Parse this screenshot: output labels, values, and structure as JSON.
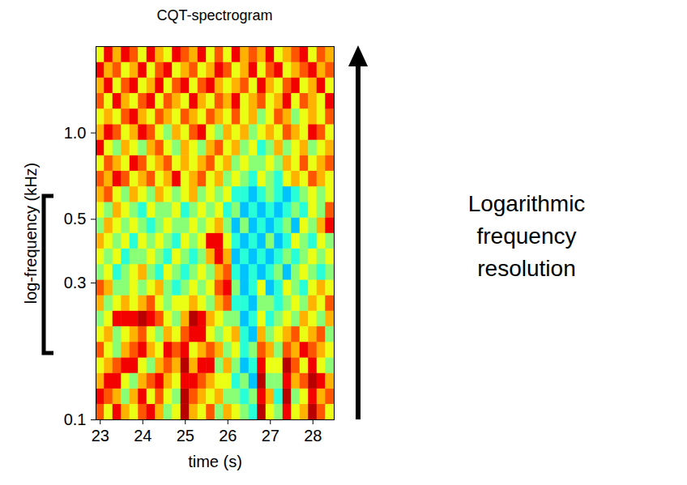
{
  "chart_data": {
    "type": "heatmap",
    "title": "CQT-spectrogram",
    "x_label": "time (s)",
    "y_label": "log-frequency (kHz)",
    "annotations": [
      "Logarithmic frequency resolution"
    ],
    "log": "y",
    "xlim": [
      22.9,
      28.5
    ],
    "xticks": [
      23,
      24,
      25,
      26,
      27,
      28
    ],
    "ylim": [
      0.1,
      2.0
    ],
    "yticks": [
      0.1,
      0.3,
      0.5,
      {
        "value": 1,
        "label": "1.0"
      }
    ],
    "x_edges": [
      22.9,
      23.1,
      23.3,
      23.5,
      23.7,
      23.9,
      24.1,
      24.3,
      24.5,
      24.7,
      24.9,
      25.1,
      25.3,
      25.5,
      25.7,
      25.9,
      26.1,
      26.3,
      26.5,
      26.7,
      26.9,
      27.1,
      27.3,
      27.5,
      27.7,
      27.9,
      28.1,
      28.3,
      28.5
    ],
    "y_edges": [
      0.1,
      0.1133,
      0.1283,
      0.1454,
      0.1647,
      0.1866,
      0.2114,
      0.2395,
      0.2714,
      0.3074,
      0.3483,
      0.3946,
      0.447,
      0.5064,
      0.5737,
      0.65,
      0.7363,
      0.8342,
      0.9451,
      1.0707,
      1.213,
      1.374,
      1.557,
      1.764,
      2.0
    ],
    "zlim": [
      0,
      1
    ],
    "cells": [
      [
        0.8,
        0.6,
        0.9,
        0.7,
        0.6,
        0.8,
        0.9,
        0.7,
        0.5,
        0.6,
        0.95,
        0.7,
        0.6,
        0.8,
        0.5,
        0.7,
        0.6,
        0.5,
        0.4,
        0.95,
        0.6,
        0.5,
        0.9,
        0.6,
        0.7,
        0.95,
        0.8,
        0.6
      ],
      [
        0.9,
        0.8,
        0.7,
        0.5,
        0.7,
        0.9,
        0.6,
        0.8,
        0.6,
        0.5,
        0.95,
        0.8,
        0.7,
        0.6,
        0.7,
        0.5,
        0.5,
        0.4,
        0.5,
        0.9,
        0.7,
        0.4,
        0.95,
        0.5,
        0.6,
        0.9,
        0.7,
        0.8
      ],
      [
        0.7,
        0.9,
        0.9,
        0.6,
        0.5,
        0.7,
        0.8,
        0.9,
        0.7,
        0.6,
        0.9,
        0.9,
        0.8,
        0.7,
        0.6,
        0.6,
        0.4,
        0.5,
        0.3,
        0.95,
        0.5,
        0.5,
        0.9,
        0.7,
        0.8,
        0.95,
        0.9,
        0.7
      ],
      [
        0.6,
        0.7,
        0.8,
        0.9,
        0.9,
        0.6,
        0.5,
        0.7,
        0.8,
        0.7,
        0.95,
        0.7,
        0.9,
        0.9,
        0.5,
        0.7,
        0.5,
        0.3,
        0.4,
        0.9,
        0.6,
        0.6,
        0.95,
        0.8,
        0.6,
        0.9,
        0.6,
        0.5
      ],
      [
        0.8,
        0.6,
        0.5,
        0.7,
        0.8,
        0.9,
        0.7,
        0.6,
        0.9,
        0.8,
        0.9,
        0.6,
        0.7,
        0.8,
        0.7,
        0.5,
        0.6,
        0.4,
        0.5,
        0.8,
        0.7,
        0.5,
        0.8,
        0.7,
        0.9,
        0.8,
        0.7,
        0.6
      ],
      [
        0.6,
        0.7,
        0.5,
        0.6,
        0.7,
        0.8,
        0.6,
        0.5,
        0.7,
        0.6,
        0.8,
        0.9,
        0.9,
        0.6,
        0.5,
        0.6,
        0.7,
        0.4,
        0.3,
        0.7,
        0.5,
        0.6,
        0.7,
        0.8,
        0.6,
        0.7,
        0.8,
        0.5
      ],
      [
        0.5,
        0.6,
        0.9,
        0.9,
        0.9,
        0.95,
        0.9,
        0.8,
        0.6,
        0.5,
        0.7,
        0.95,
        0.9,
        0.7,
        0.6,
        0.5,
        0.5,
        0.3,
        0.4,
        0.6,
        0.4,
        0.5,
        0.6,
        0.5,
        0.7,
        0.6,
        0.5,
        0.7
      ],
      [
        0.7,
        0.5,
        0.6,
        0.7,
        0.6,
        0.7,
        0.8,
        0.6,
        0.5,
        0.6,
        0.6,
        0.7,
        0.6,
        0.5,
        0.7,
        0.8,
        0.4,
        0.4,
        0.3,
        0.5,
        0.5,
        0.4,
        0.5,
        0.6,
        0.5,
        0.7,
        0.6,
        0.8
      ],
      [
        0.8,
        0.7,
        0.5,
        0.5,
        0.6,
        0.5,
        0.6,
        0.7,
        0.5,
        0.4,
        0.5,
        0.6,
        0.5,
        0.6,
        0.8,
        0.9,
        0.5,
        0.3,
        0.4,
        0.6,
        0.3,
        0.4,
        0.6,
        0.5,
        0.4,
        0.6,
        0.7,
        0.6
      ],
      [
        0.5,
        0.6,
        0.4,
        0.5,
        0.6,
        0.7,
        0.5,
        0.4,
        0.6,
        0.5,
        0.4,
        0.5,
        0.6,
        0.5,
        0.7,
        0.8,
        0.4,
        0.3,
        0.4,
        0.3,
        0.4,
        0.5,
        0.3,
        0.5,
        0.6,
        0.5,
        0.4,
        0.5
      ],
      [
        0.6,
        0.5,
        0.6,
        0.4,
        0.5,
        0.5,
        0.6,
        0.5,
        0.4,
        0.6,
        0.5,
        0.4,
        0.5,
        0.7,
        0.9,
        0.7,
        0.3,
        0.4,
        0.3,
        0.4,
        0.3,
        0.4,
        0.5,
        0.4,
        0.5,
        0.6,
        0.5,
        0.6
      ],
      [
        0.7,
        0.6,
        0.5,
        0.6,
        0.4,
        0.6,
        0.5,
        0.6,
        0.5,
        0.4,
        0.6,
        0.5,
        0.6,
        0.9,
        0.9,
        0.6,
        0.4,
        0.3,
        0.4,
        0.3,
        0.5,
        0.3,
        0.4,
        0.6,
        0.5,
        0.4,
        0.6,
        0.5
      ],
      [
        0.5,
        0.7,
        0.6,
        0.5,
        0.6,
        0.5,
        0.4,
        0.5,
        0.6,
        0.5,
        0.5,
        0.6,
        0.5,
        0.6,
        0.7,
        0.5,
        0.3,
        0.5,
        0.3,
        0.4,
        0.3,
        0.4,
        0.5,
        0.3,
        0.6,
        0.5,
        0.7,
        0.9
      ],
      [
        0.6,
        0.5,
        0.7,
        0.6,
        0.5,
        0.4,
        0.6,
        0.5,
        0.5,
        0.6,
        0.4,
        0.5,
        0.6,
        0.5,
        0.6,
        0.4,
        0.5,
        0.3,
        0.4,
        0.3,
        0.4,
        0.3,
        0.4,
        0.5,
        0.4,
        0.6,
        0.5,
        0.8
      ],
      [
        0.7,
        0.8,
        0.6,
        0.5,
        0.7,
        0.6,
        0.5,
        0.7,
        0.6,
        0.5,
        0.6,
        0.7,
        0.5,
        0.6,
        0.5,
        0.6,
        0.4,
        0.4,
        0.3,
        0.4,
        0.5,
        0.4,
        0.3,
        0.4,
        0.5,
        0.6,
        0.5,
        0.6
      ],
      [
        0.8,
        0.7,
        0.9,
        0.8,
        0.6,
        0.7,
        0.8,
        0.6,
        0.7,
        0.9,
        0.6,
        0.7,
        0.8,
        0.6,
        0.7,
        0.5,
        0.6,
        0.5,
        0.4,
        0.6,
        0.5,
        0.4,
        0.6,
        0.7,
        0.6,
        0.8,
        0.7,
        0.6
      ],
      [
        0.6,
        0.8,
        0.7,
        0.6,
        0.9,
        0.8,
        0.6,
        0.7,
        0.8,
        0.6,
        0.7,
        0.6,
        0.7,
        0.8,
        0.6,
        0.7,
        0.5,
        0.6,
        0.5,
        0.5,
        0.6,
        0.5,
        0.7,
        0.6,
        0.8,
        0.6,
        0.7,
        0.8
      ],
      [
        0.9,
        0.6,
        0.5,
        0.7,
        0.6,
        0.5,
        0.7,
        0.8,
        0.6,
        0.5,
        0.7,
        0.6,
        0.5,
        0.7,
        0.8,
        0.6,
        0.7,
        0.5,
        0.6,
        0.4,
        0.5,
        0.7,
        0.5,
        0.6,
        0.7,
        0.5,
        0.6,
        0.7
      ],
      [
        0.7,
        0.9,
        0.8,
        0.6,
        0.7,
        0.9,
        0.8,
        0.6,
        0.5,
        0.7,
        0.6,
        0.8,
        0.9,
        0.6,
        0.5,
        0.7,
        0.6,
        0.7,
        0.5,
        0.6,
        0.7,
        0.6,
        0.8,
        0.7,
        0.6,
        0.9,
        0.8,
        0.6
      ],
      [
        0.6,
        0.7,
        0.6,
        0.8,
        0.9,
        0.7,
        0.6,
        0.8,
        0.7,
        0.6,
        0.8,
        0.7,
        0.6,
        0.8,
        0.7,
        0.6,
        0.8,
        0.6,
        0.7,
        0.5,
        0.6,
        0.8,
        0.7,
        0.5,
        0.6,
        0.7,
        0.6,
        0.8
      ],
      [
        0.8,
        0.6,
        0.9,
        0.7,
        0.6,
        0.8,
        0.9,
        0.6,
        0.8,
        0.7,
        0.6,
        0.9,
        0.7,
        0.6,
        0.8,
        0.7,
        0.9,
        0.6,
        0.7,
        0.8,
        0.6,
        0.7,
        0.9,
        0.6,
        0.8,
        0.7,
        0.6,
        0.9
      ],
      [
        0.7,
        0.9,
        0.6,
        0.8,
        0.9,
        0.6,
        0.7,
        0.9,
        0.6,
        0.8,
        0.9,
        0.6,
        0.8,
        0.9,
        0.7,
        0.6,
        0.7,
        0.8,
        0.6,
        0.9,
        0.7,
        0.6,
        0.8,
        0.9,
        0.6,
        0.7,
        0.9,
        0.6
      ],
      [
        0.9,
        0.7,
        0.8,
        0.6,
        0.7,
        0.9,
        0.6,
        0.8,
        0.9,
        0.6,
        0.7,
        0.8,
        0.6,
        0.7,
        0.9,
        0.8,
        0.6,
        0.7,
        0.9,
        0.6,
        0.8,
        0.9,
        0.6,
        0.7,
        0.8,
        0.9,
        0.7,
        0.8
      ],
      [
        0.6,
        0.9,
        0.7,
        0.9,
        0.8,
        0.6,
        0.9,
        0.7,
        0.6,
        0.9,
        0.8,
        0.7,
        0.9,
        0.6,
        0.8,
        0.6,
        0.9,
        0.7,
        0.8,
        0.7,
        0.9,
        0.6,
        0.7,
        0.8,
        0.9,
        0.6,
        0.8,
        0.7
      ]
    ]
  }
}
